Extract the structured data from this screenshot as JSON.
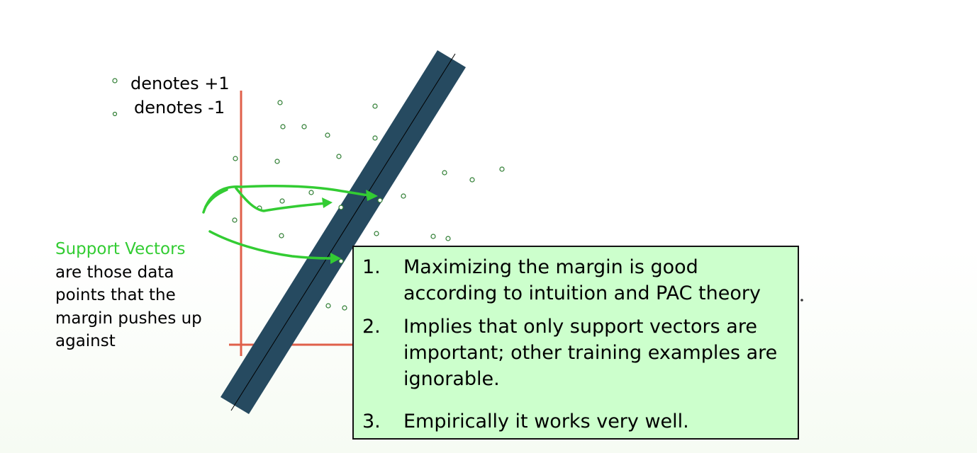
{
  "legend": {
    "positive_label": "denotes +1",
    "negative_label": "denotes -1"
  },
  "support_vectors": {
    "title": "Support Vectors",
    "description": "are those data points that the margin pushes up against"
  },
  "notes": [
    {
      "number": "1.",
      "text": "Maximizing the margin is good according to intuition and PAC theory"
    },
    {
      "number": "2.",
      "text": "Implies that only support vectors are important; other training examples are ignorable."
    },
    {
      "number": "3.",
      "text": "Empirically it works very well."
    }
  ],
  "colors": {
    "margin_band": "#264a60",
    "axis": "#e0604a",
    "annotation_arrow": "#33cc33",
    "point_stroke": "#2e7d32",
    "notes_background": "#ccffcc",
    "support_vectors_title": "#33cc33"
  }
}
